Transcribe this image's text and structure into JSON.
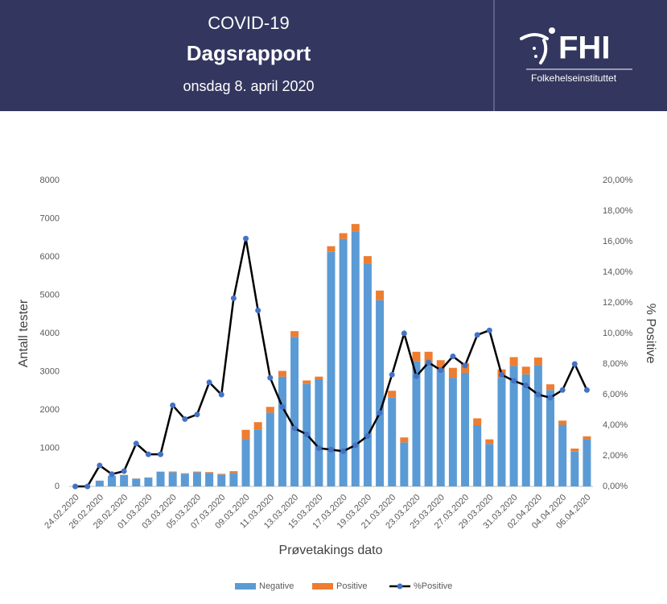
{
  "header": {
    "title": "COVID-19",
    "subtitle": "Dagsrapport",
    "date": "onsdag 8. april 2020",
    "logo": "FHI",
    "organization": "Folkehelseinstituttet"
  },
  "chart_data": {
    "type": "bar",
    "stacked": true,
    "y_label": "Antall tester",
    "y2_label": "% Positive",
    "x_label": "Prøvetakings dato",
    "categories": [
      "24.02.2020",
      null,
      "26.02.2020",
      null,
      "28.02.2020",
      null,
      "01.03.2020",
      null,
      "03.03.2020",
      null,
      "05.03.2020",
      null,
      "07.03.2020",
      null,
      "09.03.2020",
      null,
      "11.03.2020",
      null,
      "13.03.2020",
      null,
      "15.03.2020",
      null,
      "17.03.2020",
      null,
      "19.03.2020",
      null,
      "21.03.2020",
      null,
      "23.03.2020",
      null,
      "25.03.2020",
      null,
      "27.03.2020",
      null,
      "29.03.2020",
      null,
      "31.03.2020",
      null,
      "02.04.2020",
      null,
      "04.04.2020",
      null,
      "06.04.2020"
    ],
    "series": [
      {
        "name": "Negative",
        "color": "#5b9bd5",
        "type": "bar",
        "values": [
          0,
          5,
          150,
          280,
          300,
          200,
          230,
          380,
          370,
          330,
          370,
          350,
          310,
          350,
          1240,
          1490,
          1930,
          2870,
          3910,
          2680,
          2800,
          6130,
          6470,
          6670,
          5820,
          4870,
          2320,
          1150,
          3270,
          3240,
          3050,
          2840,
          2970,
          1600,
          1110,
          2840,
          3150,
          2930,
          3170,
          2520,
          1610,
          910,
          1230
        ]
      },
      {
        "name": "Positive",
        "color": "#ed7d31",
        "type": "bar",
        "values": [
          0,
          0,
          2,
          2,
          3,
          6,
          5,
          8,
          20,
          15,
          18,
          25,
          20,
          48,
          240,
          190,
          150,
          150,
          150,
          90,
          70,
          150,
          150,
          190,
          200,
          250,
          180,
          130,
          250,
          280,
          250,
          260,
          250,
          180,
          120,
          220,
          230,
          200,
          200,
          150,
          110,
          80,
          80
        ]
      },
      {
        "name": "%Positive",
        "color": "#000000",
        "marker_color": "#4472c4",
        "type": "line",
        "axis": "y2",
        "values": [
          0,
          0,
          1.37,
          0.8,
          1.0,
          2.8,
          2.1,
          2.1,
          5.3,
          4.4,
          4.7,
          6.8,
          6.0,
          12.3,
          16.2,
          11.5,
          7.1,
          5.2,
          3.8,
          3.4,
          2.5,
          2.4,
          2.3,
          2.7,
          3.3,
          4.8,
          7.3,
          10.0,
          7.2,
          8.1,
          7.6,
          8.5,
          7.9,
          9.9,
          10.2,
          7.3,
          6.9,
          6.6,
          6.0,
          5.8,
          6.3,
          8.0,
          6.3
        ]
      }
    ],
    "ylim": [
      0,
      8000
    ],
    "yticks": [
      0,
      1000,
      2000,
      3000,
      4000,
      5000,
      6000,
      7000,
      8000
    ],
    "y2lim": [
      0,
      20
    ],
    "y2ticks": [
      {
        "value": 0,
        "label": "0,00%"
      },
      {
        "value": 2,
        "label": "2,00%"
      },
      {
        "value": 4,
        "label": "4,00%"
      },
      {
        "value": 6,
        "label": "6,00%"
      },
      {
        "value": 8,
        "label": "8,00%"
      },
      {
        "value": 10,
        "label": "10,00%"
      },
      {
        "value": 12,
        "label": "12,00%"
      },
      {
        "value": 14,
        "label": "14,00%"
      },
      {
        "value": 16,
        "label": "16,00%"
      },
      {
        "value": 18,
        "label": "18,00%"
      },
      {
        "value": 20,
        "label": "20,00%"
      }
    ],
    "grid": false,
    "legend": "bottom"
  }
}
